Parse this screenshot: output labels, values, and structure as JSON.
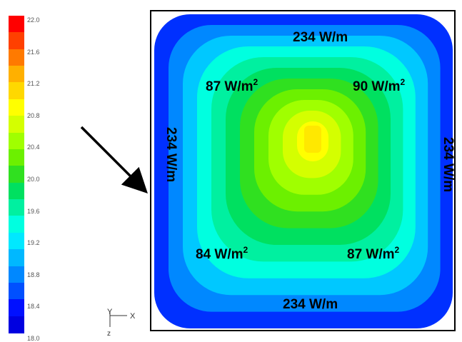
{
  "colorbar": {
    "ticks": [
      "22.0",
      "21.6",
      "21.2",
      "20.8",
      "20.4",
      "20.0",
      "19.6",
      "19.2",
      "18.8",
      "18.4",
      "18.0"
    ],
    "colors": [
      "#ff0000",
      "#ff4000",
      "#ff7a00",
      "#ffb000",
      "#ffd800",
      "#ffff00",
      "#d4ff00",
      "#a0ff00",
      "#6cf000",
      "#30e020",
      "#00e060",
      "#00f0a0",
      "#00ffe0",
      "#00e8ff",
      "#00b8ff",
      "#0088ff",
      "#0050ff",
      "#0010ff",
      "#0000e0"
    ]
  },
  "axes": {
    "y": "Y",
    "x": "X",
    "z": "z"
  },
  "labels": {
    "top_edge": "234 W/m",
    "bottom_edge": "234 W/m",
    "left_edge": "234 W/m",
    "right_edge": "234 W/m",
    "corner_top_left": "87 W/m",
    "corner_top_right": "90 W/m",
    "corner_bottom_left": "84 W/m",
    "corner_bottom_right": "87 W/m",
    "superscript": "2"
  },
  "contour_colors": [
    "#0030ff",
    "#0088ff",
    "#00c8ff",
    "#00ffe0",
    "#00f0a0",
    "#00e060",
    "#30e020",
    "#6cf000",
    "#a0ff00",
    "#d4ff00",
    "#ffff00"
  ]
}
